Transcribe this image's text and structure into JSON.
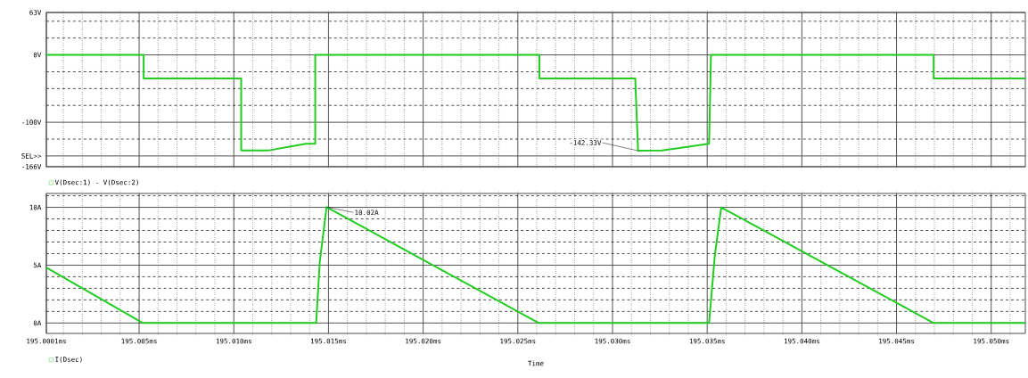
{
  "chart_data": [
    {
      "type": "line",
      "xlim": [
        195.0001,
        195.0518
      ],
      "ylim": [
        -166,
        63
      ],
      "xticks": [
        {
          "value": 195.0001,
          "label": null
        },
        {
          "value": 195.005,
          "label": null
        },
        {
          "value": 195.01,
          "label": null
        },
        {
          "value": 195.015,
          "label": null
        },
        {
          "value": 195.02,
          "label": null
        },
        {
          "value": 195.025,
          "label": null
        },
        {
          "value": 195.03,
          "label": null
        },
        {
          "value": 195.035,
          "label": null
        },
        {
          "value": 195.04,
          "label": null
        },
        {
          "value": 195.045,
          "label": null
        },
        {
          "value": 195.05,
          "label": null
        }
      ],
      "yticks": [
        {
          "value": 63,
          "label": "63V"
        },
        {
          "value": 0,
          "label": "0V"
        },
        {
          "value": -100,
          "label": "-100V"
        },
        {
          "value": -150,
          "label": "SEL>>"
        },
        {
          "value": -166,
          "label": "-166V"
        }
      ],
      "tick_labels": "y",
      "grid": true,
      "legend": "bottom left",
      "line_style": "solid",
      "annotations": [
        {
          "text": "-142.33V",
          "x": 195.03135,
          "y": -142.33
        }
      ],
      "series": [
        {
          "name": "V(Dsec:1) - V(Dsec:2)",
          "color": "#22cc22",
          "x": [
            195.0001,
            195.00524,
            195.00524,
            195.01039,
            195.01039,
            195.0118,
            195.0138,
            195.0143,
            195.0143,
            195.02614,
            195.02614,
            195.0312,
            195.03135,
            195.0326,
            195.0351,
            195.0352,
            195.04696,
            195.04696,
            195.0518
          ],
          "values": [
            0,
            0,
            -35,
            -35,
            -142,
            -142,
            -132,
            -132,
            0,
            0,
            -35,
            -35,
            -142.33,
            -142,
            -132,
            0,
            0,
            -35,
            -35
          ]
        }
      ]
    },
    {
      "type": "line",
      "xlim": [
        195.0001,
        195.0518
      ],
      "ylim": [
        -0.9,
        11.2
      ],
      "xticks": [
        {
          "value": 195.0001,
          "label": "195.0001ms"
        },
        {
          "value": 195.005,
          "label": "195.005ms"
        },
        {
          "value": 195.01,
          "label": "195.010ms"
        },
        {
          "value": 195.015,
          "label": "195.015ms"
        },
        {
          "value": 195.02,
          "label": "195.020ms"
        },
        {
          "value": 195.025,
          "label": "195.025ms"
        },
        {
          "value": 195.03,
          "label": "195.030ms"
        },
        {
          "value": 195.035,
          "label": "195.035ms"
        },
        {
          "value": 195.04,
          "label": "195.040ms"
        },
        {
          "value": 195.045,
          "label": "195.045ms"
        },
        {
          "value": 195.05,
          "label": "195.050ms"
        }
      ],
      "yticks": [
        {
          "value": 0,
          "label": "0A"
        },
        {
          "value": 5,
          "label": "5A"
        },
        {
          "value": 10,
          "label": "10A"
        }
      ],
      "xlabel": "Time",
      "grid": true,
      "legend": "bottom left",
      "line_style": "solid",
      "annotations": [
        {
          "text": "10.02A",
          "x": 195.0149,
          "y": 10.02
        }
      ],
      "series": [
        {
          "name": "I(Dsec)",
          "color": "#22cc22",
          "x": [
            195.0001,
            195.0052,
            195.01435,
            195.01454,
            195.0149,
            195.02611,
            195.0351,
            195.0354,
            195.03574,
            195.04696,
            195.0518
          ],
          "values": [
            4.8,
            0,
            0,
            5.3,
            10.02,
            0,
            0,
            5.8,
            10.0,
            0,
            0
          ]
        }
      ]
    }
  ]
}
